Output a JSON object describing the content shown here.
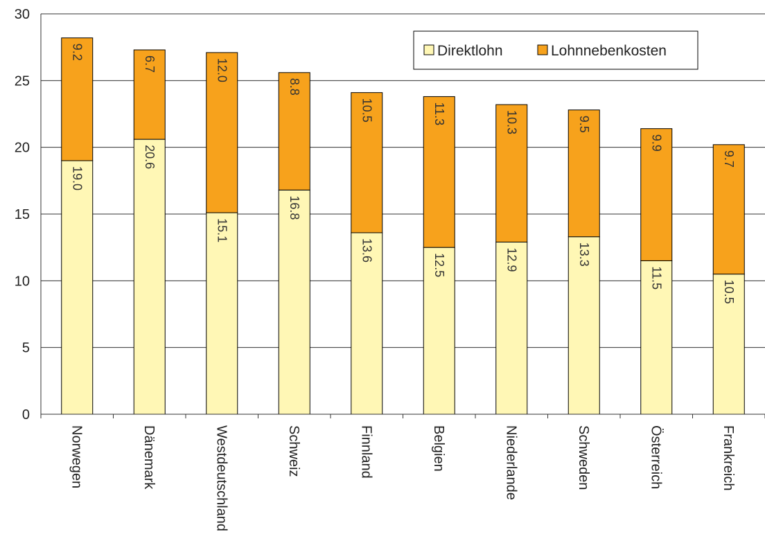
{
  "chart_data": {
    "type": "bar",
    "stacked": true,
    "title": "",
    "xlabel": "",
    "ylabel": "",
    "ylim": [
      0,
      30
    ],
    "yticks": [
      0,
      5,
      10,
      15,
      20,
      25,
      30
    ],
    "grid": true,
    "legend_position": "top-right",
    "categories": [
      "Norwegen",
      "Dänemark",
      "Westdeutschland",
      "Schweiz",
      "Finnland",
      "Belgien",
      "Niederlande",
      "Schweden",
      "Österreich",
      "Frankreich"
    ],
    "series": [
      {
        "name": "Direktlohn",
        "color": "#FFF7B5",
        "values": [
          19.0,
          20.6,
          15.1,
          16.8,
          13.6,
          12.5,
          12.9,
          13.3,
          11.5,
          10.5
        ],
        "labels": [
          "19.0",
          "20.6",
          "15.1",
          "16.8",
          "13.6",
          "12.5",
          "12.9",
          "13.3",
          "11.5",
          "10.5"
        ]
      },
      {
        "name": "Lohnnebenkosten",
        "color": "#F7A21C",
        "values": [
          9.2,
          6.7,
          12.0,
          8.8,
          10.5,
          11.3,
          10.3,
          9.5,
          9.9,
          9.7
        ],
        "labels": [
          "9.2",
          "6.7",
          "12.0",
          "8.8",
          "10.5",
          "11.3",
          "10.3",
          "9.5",
          "9.9",
          "9.7"
        ]
      }
    ]
  }
}
